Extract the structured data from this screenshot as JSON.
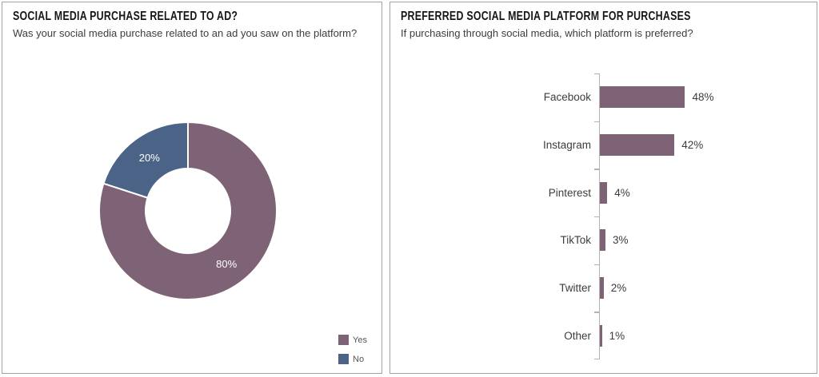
{
  "left_panel": {
    "title": "SOCIAL MEDIA PURCHASE RELATED TO AD?",
    "subtitle": "Was your social media purchase related to an ad you saw on the platform?"
  },
  "right_panel": {
    "title": "PREFERRED SOCIAL MEDIA PLATFORM FOR PURCHASES",
    "subtitle": "If purchasing through social media, which platform is preferred?"
  },
  "colors": {
    "purple": "#7E6376",
    "blue": "#4B6386",
    "axis": "#b3b3b3",
    "panel_border": "#a2a2a2",
    "white_label": "#ffffff"
  },
  "legend": {
    "items": [
      {
        "label": "Yes",
        "color": "#7E6376"
      },
      {
        "label": "No",
        "color": "#4B6386"
      }
    ]
  },
  "chart_data": [
    {
      "type": "pie",
      "variant": "donut",
      "title": "SOCIAL MEDIA PURCHASE RELATED TO AD?",
      "labels": [
        "Yes",
        "No"
      ],
      "values": [
        80,
        20
      ],
      "data_labels": [
        "80%",
        "20%"
      ],
      "colors": [
        "#7E6376",
        "#4B6386"
      ],
      "start_angle_deg": 0,
      "direction": "clockwise",
      "hole_ratio": 0.48,
      "legend_position": "bottom-right",
      "separator_color": "#ffffff"
    },
    {
      "type": "bar",
      "orientation": "horizontal",
      "title": "PREFERRED SOCIAL MEDIA PLATFORM FOR PURCHASES",
      "categories": [
        "Facebook",
        "Instagram",
        "Pinterest",
        "TikTok",
        "Twitter",
        "Other"
      ],
      "values": [
        48,
        42,
        4,
        3,
        2,
        1
      ],
      "data_labels": [
        "48%",
        "42%",
        "4%",
        "3%",
        "2%",
        "1%"
      ],
      "bar_color": "#7E6376",
      "xlim": [
        0,
        100
      ],
      "gridlines": false,
      "value_labels_position": "right-of-bar"
    }
  ]
}
